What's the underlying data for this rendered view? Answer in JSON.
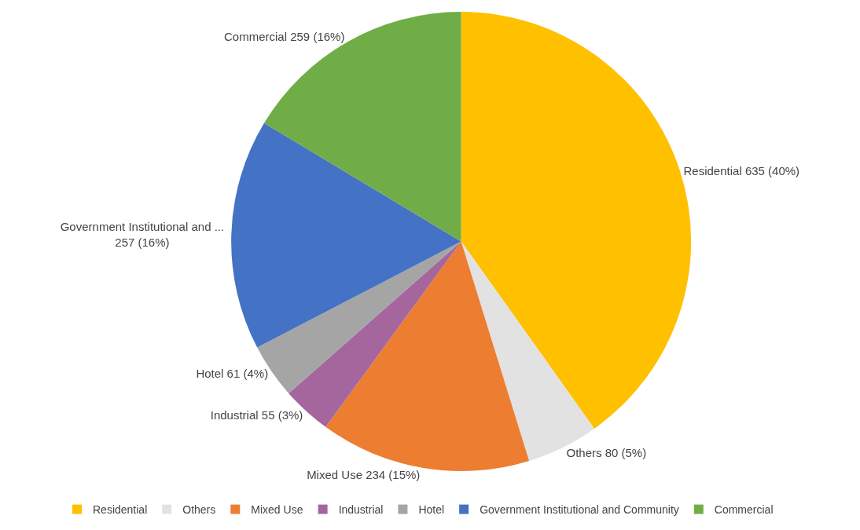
{
  "chart_data": {
    "type": "pie",
    "categories": [
      "Residential",
      "Others",
      "Mixed Use",
      "Industrial",
      "Hotel",
      "Government Institutional and Community",
      "Commercial"
    ],
    "values": [
      635,
      80,
      234,
      55,
      61,
      257,
      259
    ],
    "colors": [
      "#ffc000",
      "#e2e2e2",
      "#ed7d31",
      "#a5669e",
      "#a5a5a5",
      "#4472c4",
      "#70ad47"
    ],
    "value_labels": [
      "Residential 635 (40%)",
      "Others 80 (5%)",
      "Mixed Use 234 (15%)",
      "Industrial 55 (3%)",
      "Hotel 61 (4%)",
      "Government Institutional and ...\n257 (16%)",
      "Commercial 259 (16%)"
    ],
    "legend": "bottom"
  }
}
